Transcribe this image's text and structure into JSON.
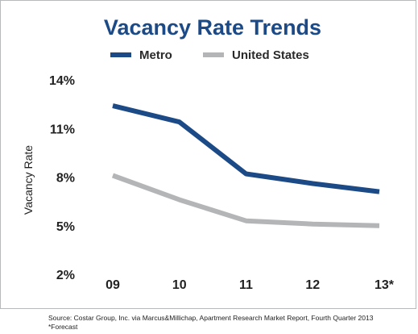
{
  "chart_data": {
    "type": "line",
    "title": "Vacancy Rate Trends",
    "xlabel": "",
    "ylabel": "Vacancy Rate",
    "categories": [
      "09",
      "10",
      "11",
      "12",
      "13*"
    ],
    "series": [
      {
        "name": "Metro",
        "values": [
          12.4,
          11.4,
          8.2,
          7.6,
          7.1
        ],
        "color": "#1b4a86"
      },
      {
        "name": "United States",
        "values": [
          8.1,
          6.6,
          5.3,
          5.1,
          5.0
        ],
        "color": "#b3b5b7"
      }
    ],
    "yticks": [
      "14%",
      "11%",
      "8%",
      "5%",
      "2%"
    ],
    "ytick_values": [
      14,
      11,
      8,
      5,
      2
    ],
    "ylim": [
      2,
      14
    ],
    "grid": false,
    "legend_position": "top-center"
  },
  "footer": {
    "source": "Source: Costar Group, Inc. via Marcus&Millichap, Apartment Research Market Report, Fourth Quarter 2013",
    "note": "*Forecast"
  }
}
